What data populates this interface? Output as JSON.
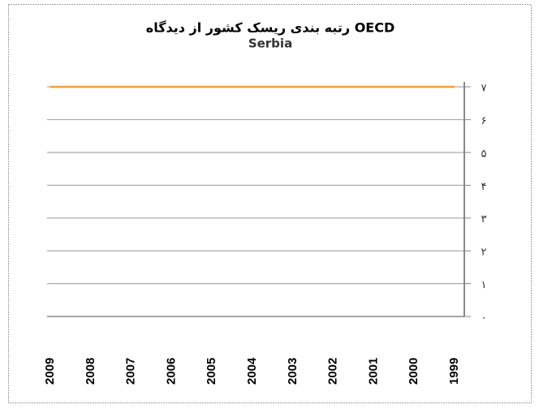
{
  "chart_data": {
    "type": "line",
    "title": "رتبه بندی ریسک کشور از دیدگاه OECD",
    "subtitle": "Serbia",
    "categories": [
      "2009",
      "2008",
      "2007",
      "2006",
      "2005",
      "2004",
      "2003",
      "2002",
      "2001",
      "2000",
      "1999"
    ],
    "series": [
      {
        "name": "Serbia",
        "color": "#f0a040",
        "values": [
          7,
          7,
          7,
          7,
          7,
          7,
          7,
          7,
          7,
          7,
          7
        ]
      }
    ],
    "ylim": [
      0,
      7
    ],
    "yticks": [
      {
        "value": 0,
        "label": "۰"
      },
      {
        "value": 1,
        "label": "۱"
      },
      {
        "value": 2,
        "label": "۲"
      },
      {
        "value": 3,
        "label": "۳"
      },
      {
        "value": 4,
        "label": "۴"
      },
      {
        "value": 5,
        "label": "۵"
      },
      {
        "value": 6,
        "label": "۶"
      },
      {
        "value": 7,
        "label": "۷"
      }
    ],
    "grid": true
  }
}
